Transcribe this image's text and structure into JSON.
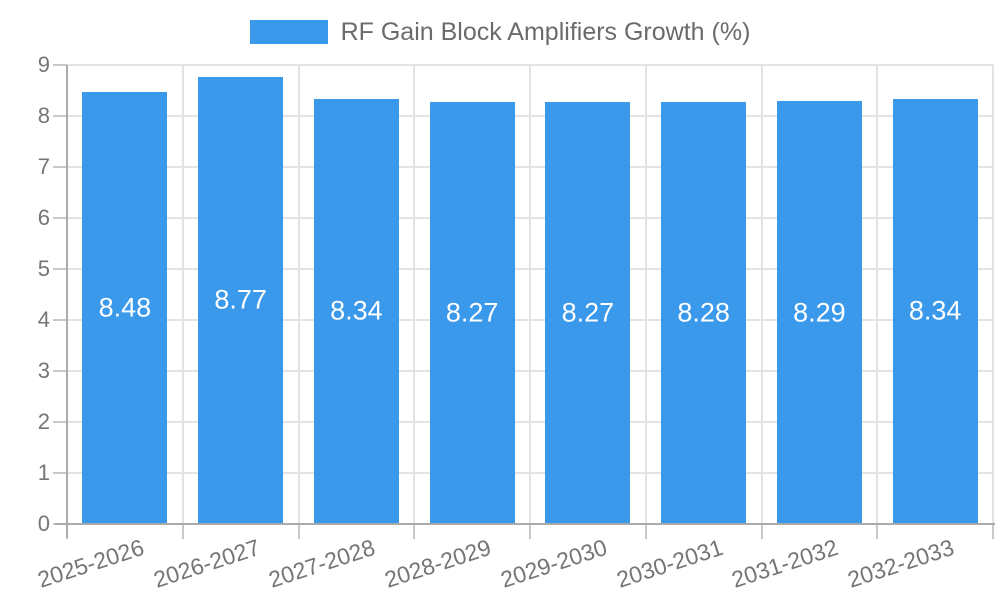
{
  "chart_data": {
    "type": "bar",
    "title": "RF Gain Block Amplifiers Growth (%)",
    "categories": [
      "2025-2026",
      "2026-2027",
      "2027-2028",
      "2028-2029",
      "2029-2030",
      "2030-2031",
      "2031-2032",
      "2032-2033"
    ],
    "values": [
      8.48,
      8.77,
      8.34,
      8.27,
      8.27,
      8.28,
      8.29,
      8.34
    ],
    "value_labels": [
      "8.48",
      "8.77",
      "8.34",
      "8.27",
      "8.27",
      "8.28",
      "8.29",
      "8.34"
    ],
    "xlabel": "",
    "ylabel": "",
    "ylim": [
      0,
      9
    ],
    "yticks": [
      0,
      1,
      2,
      3,
      4,
      5,
      6,
      7,
      8,
      9
    ],
    "grid": true,
    "legend_position": "top"
  },
  "legend": {
    "label": "RF Gain Block Amplifiers Growth (%)"
  },
  "colors": {
    "bar": "#3B99EC",
    "bar_label": "#FFFFFF",
    "axis_line": "#ABABAB",
    "gridline": "#E3E3E3",
    "tick": "#C9C9C9",
    "axis_text": "#757575",
    "legend_text": "#6B6B6B",
    "background": "#FFFFFF"
  }
}
